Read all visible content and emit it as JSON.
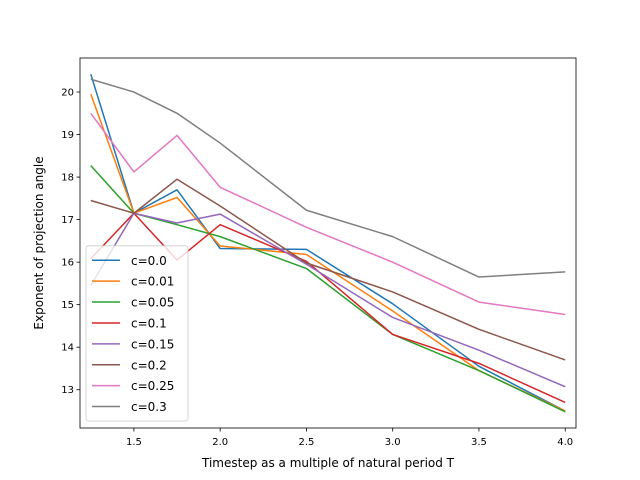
{
  "chart_data": {
    "type": "line",
    "title": "",
    "xlabel": "Timestep as a multiple of natural period T",
    "ylabel": "Exponent of projection angle",
    "xlim": [
      1.1875,
      4.0625
    ],
    "ylim": [
      12.1,
      20.8
    ],
    "x": [
      1.25,
      1.5,
      1.75,
      2.0,
      2.5,
      3.0,
      3.5,
      4.0
    ],
    "x_ticks": [
      1.5,
      2.0,
      2.5,
      3.0,
      3.5,
      4.0
    ],
    "x_tick_labels": [
      "1.5",
      "2.0",
      "2.5",
      "3.0",
      "3.5",
      "4.0"
    ],
    "y_ticks": [
      13,
      14,
      15,
      16,
      17,
      18,
      19,
      20
    ],
    "y_tick_labels": [
      "13",
      "14",
      "15",
      "16",
      "17",
      "18",
      "19",
      "20"
    ],
    "grid": false,
    "legend_position": "lower-left",
    "series": [
      {
        "name": "c=0.0",
        "color": "#1f77b4",
        "values": [
          20.42,
          17.15,
          17.7,
          16.32,
          16.3,
          15.02,
          13.55,
          12.5
        ]
      },
      {
        "name": "c=0.01",
        "color": "#ff7f0e",
        "values": [
          19.95,
          17.15,
          17.52,
          16.38,
          16.18,
          14.85,
          13.45,
          12.5
        ]
      },
      {
        "name": "c=0.05",
        "color": "#2ca02c",
        "values": [
          18.27,
          17.15,
          16.88,
          16.6,
          15.85,
          14.3,
          13.45,
          12.48
        ]
      },
      {
        "name": "c=0.1",
        "color": "#d62728",
        "values": [
          16.08,
          17.15,
          16.05,
          16.88,
          16.02,
          14.3,
          13.62,
          12.7
        ]
      },
      {
        "name": "c=0.15",
        "color": "#9467bd",
        "values": [
          15.45,
          17.15,
          16.92,
          17.13,
          15.95,
          14.7,
          13.93,
          13.07
        ]
      },
      {
        "name": "c=0.2",
        "color": "#8c564b",
        "values": [
          17.45,
          17.15,
          17.95,
          17.32,
          15.98,
          15.3,
          14.42,
          13.7
        ]
      },
      {
        "name": "c=0.25",
        "color": "#e377c2",
        "values": [
          19.5,
          18.12,
          18.98,
          17.76,
          16.82,
          16.0,
          15.06,
          14.77
        ]
      },
      {
        "name": "c=0.3",
        "color": "#7f7f7f",
        "values": [
          20.3,
          20.0,
          19.5,
          18.8,
          17.22,
          16.6,
          15.65,
          15.77
        ]
      }
    ]
  }
}
